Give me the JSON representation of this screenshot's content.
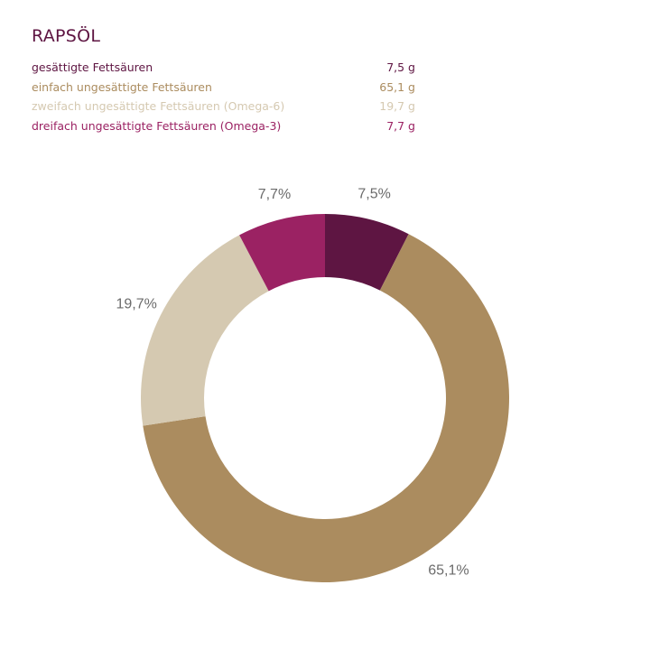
{
  "chart_data": {
    "type": "pie",
    "variant": "donut",
    "title": "RAPSÖL",
    "categories": [
      "gesättigte Fettsäuren",
      "einfach ungesättigte Fettsäuren",
      "zweifach ungesättigte Fettsäuren (Omega-6)",
      "dreifach ungesättigte Fettsäuren (Omega-3)"
    ],
    "amounts": [
      "7,5 g",
      "65,1 g",
      "19,7 g",
      "7,7 g"
    ],
    "values": [
      7.5,
      65.1,
      19.7,
      7.7
    ],
    "data_labels": [
      "7,5%",
      "65,1%",
      "19,7%",
      "7,7%"
    ],
    "colors": [
      "#5e1542",
      "#ab8c5f",
      "#d5c9b1",
      "#9b2263"
    ],
    "legend": "top-left"
  }
}
